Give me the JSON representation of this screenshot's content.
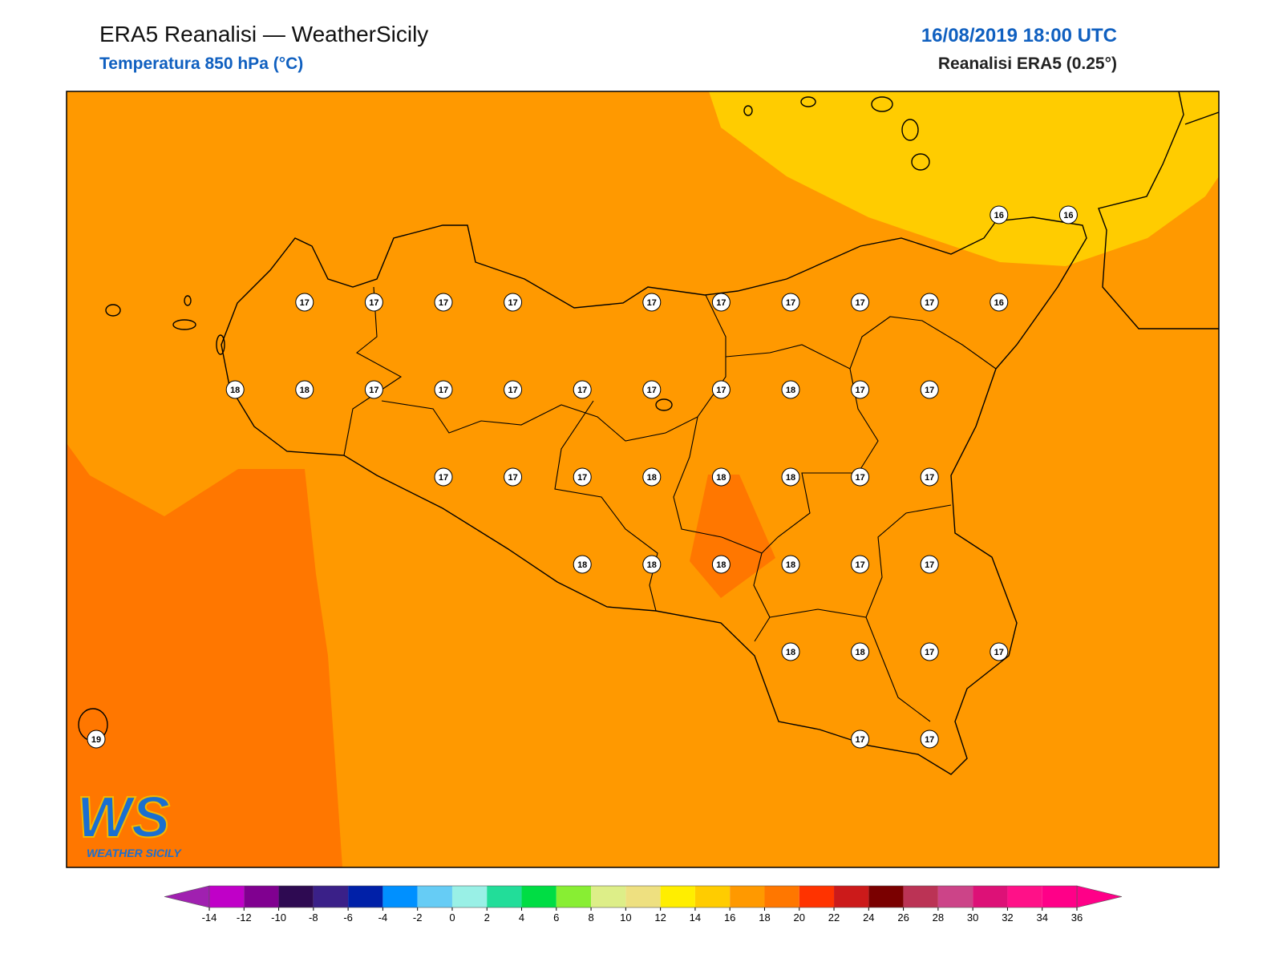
{
  "header": {
    "title": "ERA5 Reanalisi — WeatherSicily",
    "subtitle": "Temperatura 850 hPa (°C)",
    "datetime": "16/08/2019 18:00 UTC",
    "source": "Reanalisi ERA5 (0.25°)"
  },
  "map": {
    "station_values": [
      [
        null,
        null,
        null,
        null,
        null,
        null,
        null,
        null,
        null,
        null,
        null,
        null,
        null,
        16,
        16
      ],
      [
        null,
        null,
        null,
        17,
        17,
        17,
        17,
        null,
        17,
        17,
        17,
        17,
        17,
        16,
        null
      ],
      [
        null,
        null,
        18,
        18,
        17,
        17,
        17,
        17,
        17,
        17,
        18,
        17,
        17,
        null,
        null
      ],
      [
        null,
        null,
        null,
        null,
        null,
        17,
        17,
        17,
        18,
        18,
        18,
        17,
        17,
        null,
        null
      ],
      [
        null,
        null,
        null,
        null,
        null,
        null,
        null,
        18,
        18,
        18,
        18,
        17,
        17,
        null,
        null
      ],
      [
        null,
        null,
        null,
        null,
        null,
        null,
        null,
        null,
        null,
        null,
        18,
        18,
        17,
        17,
        null
      ],
      [
        19,
        null,
        null,
        null,
        null,
        null,
        null,
        null,
        null,
        null,
        null,
        17,
        17,
        null,
        null
      ]
    ]
  },
  "colorbar": {
    "ticks": [
      -14,
      -12,
      -10,
      -8,
      -6,
      -4,
      -2,
      0,
      2,
      4,
      6,
      8,
      10,
      12,
      14,
      16,
      18,
      20,
      22,
      24,
      26,
      28,
      30,
      32,
      34,
      36
    ],
    "under_color": "#a020b0",
    "colors": [
      "#c000c8",
      "#800090",
      "#2e0a52",
      "#3a2088",
      "#0020a8",
      "#0090ff",
      "#66ccf5",
      "#99f0e6",
      "#22dd99",
      "#00dd44",
      "#88ee33",
      "#ddee88",
      "#eee080",
      "#ffee00",
      "#ffcc00",
      "#ff9900",
      "#ff7700",
      "#ff3300",
      "#cc1a1a",
      "#7a0000",
      "#bb3355",
      "#cc4488",
      "#dd1177",
      "#ff1188",
      "#ff0088"
    ],
    "over_color": "#ff0088"
  },
  "logo": {
    "mark": "WS",
    "text": "WEATHER SICILY"
  }
}
